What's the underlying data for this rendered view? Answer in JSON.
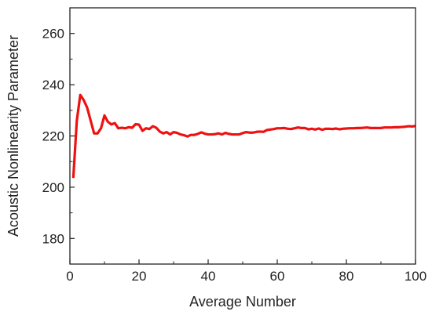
{
  "chart_data": {
    "type": "line",
    "title": "",
    "xlabel": "Average Number",
    "ylabel": "Acoustic Nonlinearity Parameter",
    "xlim": [
      0,
      100
    ],
    "ylim": [
      170,
      270
    ],
    "xticks": [
      0,
      20,
      40,
      60,
      80,
      100
    ],
    "yticks": [
      180,
      200,
      220,
      240,
      260
    ],
    "xtick_labels": [
      "0",
      "20",
      "40",
      "60",
      "80",
      "100"
    ],
    "ytick_labels": [
      "180",
      "200",
      "220",
      "240",
      "260"
    ],
    "grid": false,
    "legend": "none",
    "series": [
      {
        "color": "#ee1111",
        "x": [
          1,
          2,
          3,
          4,
          5,
          6,
          7,
          8,
          9,
          10,
          11,
          12,
          13,
          14,
          15,
          16,
          17,
          18,
          19,
          20,
          21,
          22,
          23,
          24,
          25,
          26,
          27,
          28,
          29,
          30,
          31,
          32,
          33,
          34,
          35,
          36,
          37,
          38,
          39,
          40,
          41,
          42,
          43,
          44,
          45,
          46,
          47,
          48,
          49,
          50,
          51,
          52,
          53,
          54,
          55,
          56,
          57,
          58,
          59,
          60,
          61,
          62,
          63,
          64,
          65,
          66,
          67,
          68,
          69,
          70,
          71,
          72,
          73,
          74,
          75,
          76,
          77,
          78,
          79,
          80,
          81,
          82,
          83,
          84,
          85,
          86,
          87,
          88,
          89,
          90,
          91,
          92,
          93,
          94,
          95,
          96,
          97,
          98,
          99,
          100
        ],
        "y": [
          204,
          226,
          236,
          234,
          231,
          226,
          221,
          221,
          223,
          228,
          225.5,
          224.5,
          225,
          223,
          223.2,
          223,
          223.4,
          223.2,
          224.6,
          224.4,
          222,
          223,
          222.7,
          223.8,
          223.2,
          221.7,
          221,
          221.5,
          220.6,
          221.5,
          221.2,
          220.6,
          220.3,
          219.8,
          220.4,
          220.4,
          220.8,
          221.4,
          220.9,
          220.6,
          220.6,
          220.7,
          221,
          220.6,
          221.2,
          220.8,
          220.6,
          220.6,
          220.6,
          221.1,
          221.5,
          221.3,
          221.3,
          221.6,
          221.7,
          221.6,
          222.3,
          222.5,
          222.7,
          223,
          223,
          223.1,
          222.8,
          222.7,
          223,
          223.3,
          223.1,
          223.1,
          222.6,
          222.8,
          222.5,
          222.9,
          222.4,
          222.8,
          222.8,
          222.7,
          222.9,
          222.6,
          222.8,
          222.9,
          223,
          223,
          223.1,
          223.1,
          223.2,
          223.3,
          223.1,
          223.1,
          223.1,
          223.1,
          223.3,
          223.3,
          223.3,
          223.4,
          223.4,
          223.5,
          223.6,
          223.8,
          223.7,
          223.9
        ]
      }
    ]
  }
}
